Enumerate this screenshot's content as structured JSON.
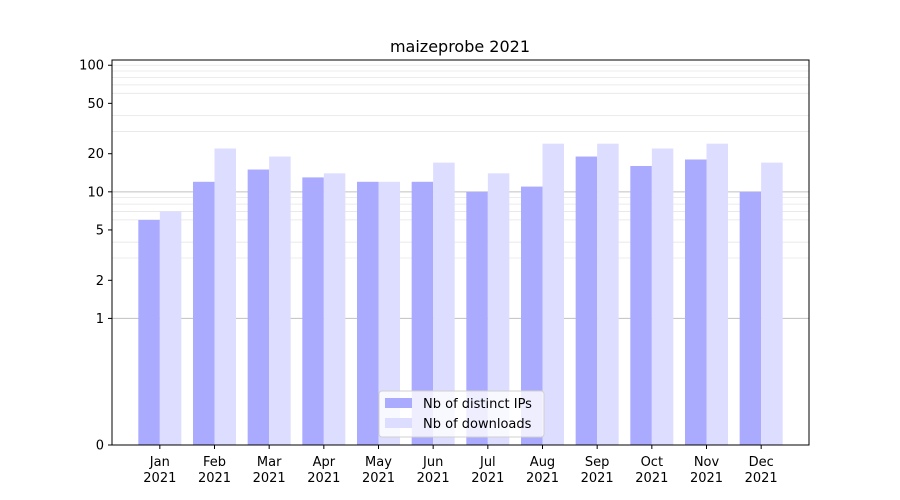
{
  "chart_data": {
    "type": "bar",
    "title": "maizeprobe 2021",
    "xlabel": "",
    "ylabel": "",
    "y_scale": "symlog",
    "y_major_ticks": [
      0,
      1,
      2,
      5,
      10,
      20,
      50,
      100
    ],
    "y_major_tick_labels": [
      "0",
      "1",
      "2",
      "5",
      "10",
      "20",
      "50",
      "100"
    ],
    "ylim": [
      0,
      110
    ],
    "categories": [
      "Jan\n2021",
      "Feb\n2021",
      "Mar\n2021",
      "Apr\n2021",
      "May\n2021",
      "Jun\n2021",
      "Jul\n2021",
      "Aug\n2021",
      "Sep\n2021",
      "Oct\n2021",
      "Nov\n2021",
      "Dec\n2021"
    ],
    "series": [
      {
        "name": "Nb of distinct IPs",
        "color": "#aaaaff",
        "values": [
          6,
          12,
          15,
          13,
          12,
          12,
          10,
          11,
          19,
          16,
          18,
          10
        ]
      },
      {
        "name": "Nb of downloads",
        "color": "#ddddff",
        "values": [
          7,
          22,
          19,
          14,
          12,
          17,
          14,
          24,
          24,
          22,
          24,
          17
        ]
      }
    ],
    "grid": true,
    "legend_position": "lower center"
  }
}
